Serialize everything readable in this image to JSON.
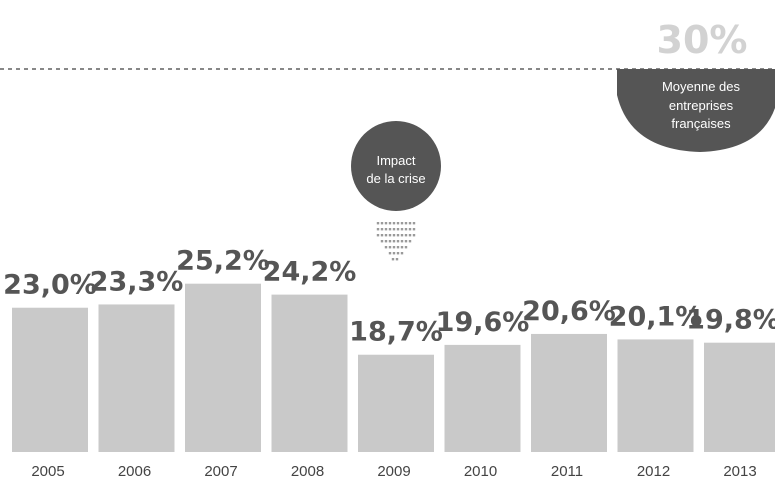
{
  "chart_data": {
    "type": "bar",
    "categories": [
      "2005",
      "2006",
      "2007",
      "2008",
      "2009",
      "2010",
      "2011",
      "2012",
      "2013"
    ],
    "values": [
      23.0,
      23.3,
      25.2,
      24.2,
      18.7,
      19.6,
      20.6,
      20.1,
      19.8
    ],
    "value_labels": [
      "23,0%",
      "23,3%",
      "25,2%",
      "24,2%",
      "18,7%",
      "19,6%",
      "20,6%",
      "20,1%",
      "19,8%"
    ],
    "ylim": [
      0,
      30
    ],
    "grid": false,
    "reference_line": {
      "value": 30,
      "label": "30%",
      "style": "dashed",
      "caption": [
        "Moyenne des",
        "entreprises",
        "françaises"
      ]
    },
    "annotations": [
      {
        "category": "2009",
        "lines": [
          "Impact",
          "de la crise"
        ],
        "marker": "down-arrow"
      }
    ],
    "colors": {
      "bar": "#c9c9c9",
      "bubble": "#555555",
      "value_text": "#555555",
      "reference_text": "#d2d2d2"
    }
  }
}
